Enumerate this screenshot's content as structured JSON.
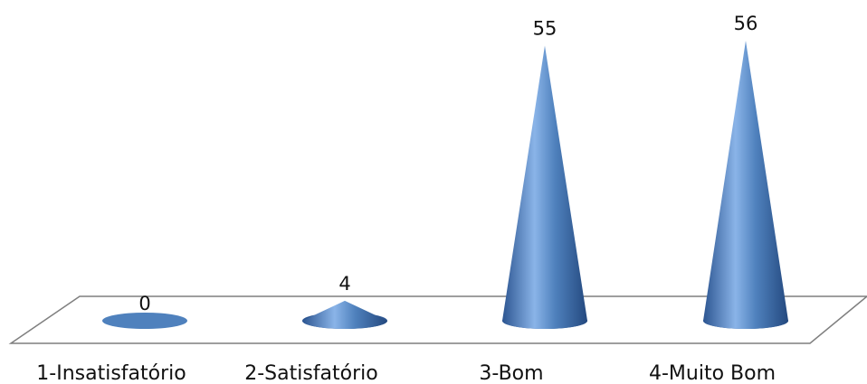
{
  "chart_data": {
    "type": "bar",
    "style": "3d-cone",
    "categories": [
      "1-Insatisfatório",
      "2-Satisfatório",
      "3-Bom",
      "4-Muito Bom"
    ],
    "values": [
      0,
      4,
      55,
      56
    ],
    "title": "",
    "xlabel": "",
    "ylabel": "",
    "ylim": [
      0,
      56
    ],
    "grid": false,
    "legend": "none",
    "colors": {
      "cone_light": "#8ab4e8",
      "cone_mid": "#4f81bd",
      "cone_dark": "#2c5591",
      "floor_stroke": "#7f7f7f"
    }
  }
}
